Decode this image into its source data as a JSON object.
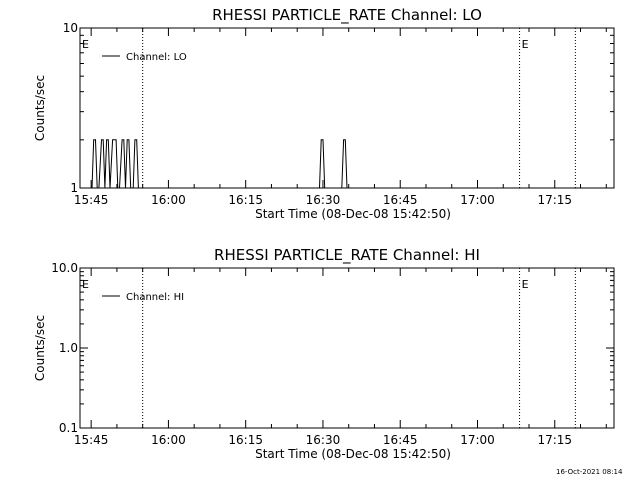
{
  "timestamp": "16-Oct-2021 08:14",
  "colors": {
    "background": "#ffffff",
    "foreground": "#000000"
  },
  "chart_data": [
    {
      "type": "line",
      "title": "RHESSI PARTICLE_RATE Channel: LO",
      "xlabel": "Start Time (08-Dec-08 15:42:50)",
      "ylabel": "Counts/sec",
      "yscale": "log",
      "ylim": [
        1,
        10
      ],
      "yticks": [
        "1",
        "10"
      ],
      "xlim": [
        "15:42:50",
        "17:26:30"
      ],
      "xticks": [
        "15:45",
        "16:00",
        "16:15",
        "16:30",
        "16:45",
        "17:00",
        "17:15"
      ],
      "legend": {
        "position": "top-left",
        "entries": [
          "Channel: LO"
        ]
      },
      "markers": [
        {
          "label": "E",
          "time": "15:42:50"
        },
        {
          "label": "E",
          "time": "17:08:10"
        }
      ],
      "dotted_lines": [
        "15:55:00",
        "17:08:10",
        "17:19:00"
      ],
      "series": [
        {
          "name": "Channel: LO",
          "x": [
            "15:45:10",
            "15:45:30",
            "15:45:50",
            "15:46:10",
            "15:46:30",
            "15:47:00",
            "15:47:20",
            "15:47:40",
            "15:48:00",
            "15:48:20",
            "15:48:40",
            "15:49:10",
            "15:49:30",
            "15:49:50",
            "15:50:10",
            "15:50:30",
            "15:51:00",
            "15:51:20",
            "15:51:40",
            "15:52:00",
            "15:52:20",
            "15:52:40",
            "15:53:10",
            "15:53:30",
            "15:53:50",
            "15:54:10",
            "15:54:30",
            "16:29:20",
            "16:29:40",
            "16:30:00",
            "16:30:20",
            "16:30:40",
            "16:33:40",
            "16:34:00",
            "16:34:20",
            "16:34:40",
            "16:35:00"
          ],
          "y": [
            1,
            2,
            2,
            1,
            1,
            2,
            2,
            1,
            2,
            2,
            1,
            2,
            2,
            2,
            1,
            1,
            2,
            2,
            1,
            2,
            2,
            1,
            1,
            2,
            2,
            1,
            1,
            1,
            2,
            2,
            1,
            1,
            1,
            2,
            2,
            1,
            1
          ]
        }
      ]
    },
    {
      "type": "line",
      "title": "RHESSI PARTICLE_RATE Channel: HI",
      "xlabel": "Start Time (08-Dec-08 15:42:50)",
      "ylabel": "Counts/sec",
      "yscale": "log",
      "ylim": [
        0.1,
        10
      ],
      "yticks": [
        "0.1",
        "1.0",
        "10.0"
      ],
      "xlim": [
        "15:42:50",
        "17:26:30"
      ],
      "xticks": [
        "15:45",
        "16:00",
        "16:15",
        "16:30",
        "16:45",
        "17:00",
        "17:15"
      ],
      "legend": {
        "position": "top-left",
        "entries": [
          "Channel: HI"
        ]
      },
      "markers": [
        {
          "label": "E",
          "time": "15:42:50"
        },
        {
          "label": "E",
          "time": "17:08:10"
        }
      ],
      "dotted_lines": [
        "15:55:00",
        "17:08:10",
        "17:19:00"
      ],
      "series": [
        {
          "name": "Channel: HI",
          "x": [],
          "y": []
        }
      ]
    }
  ]
}
